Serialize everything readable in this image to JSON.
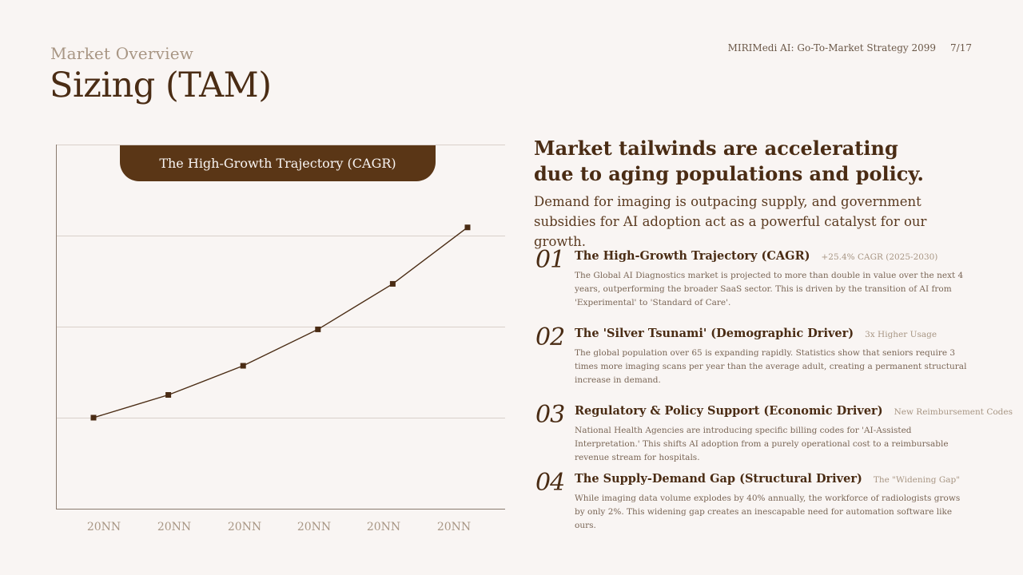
{
  "header": {
    "eyebrow": "Market Overview",
    "title": "Sizing (TAM)",
    "deck_title": "MIRIMedi AI: Go-To-Market Strategy 2099",
    "page_number": "7/17"
  },
  "chart_data": {
    "type": "line",
    "title": "The High-Growth Trajectory (CAGR)",
    "categories": [
      "20NN",
      "20NN",
      "20NN",
      "20NN",
      "20NN",
      "20NN"
    ],
    "values": [
      1.0,
      1.25,
      1.57,
      1.97,
      2.47,
      3.09
    ],
    "ylim": [
      0,
      4
    ],
    "xlabel": "",
    "ylabel": "",
    "grid": true,
    "colors": {
      "line": "#4a2c14",
      "grid": "#d9d0ca",
      "axis": "#8a7a6e",
      "tick_label": "#a89684",
      "banner": "#5a3616"
    }
  },
  "summary": {
    "headline_line1": "Market tailwinds are accelerating",
    "headline_line2": "due to aging populations and policy.",
    "subhead": "Demand for imaging is outpacing supply, and government subsidies for AI adoption act as a powerful catalyst for our growth."
  },
  "drivers": [
    {
      "number": "01",
      "title": "The High-Growth Trajectory (CAGR)",
      "tag": "+25.4% CAGR (2025-2030)",
      "description": "The Global AI Diagnostics market is projected to more than double in value over the next 4 years, outperforming the broader SaaS sector. This is driven by the transition of AI from 'Experimental' to 'Standard of Care'."
    },
    {
      "number": "02",
      "title": "The 'Silver Tsunami' (Demographic Driver)",
      "tag": "3x Higher Usage",
      "description": "The global population over 65 is expanding rapidly. Statistics show that seniors require 3 times more imaging scans per year than the average adult, creating a permanent structural increase in demand."
    },
    {
      "number": "03",
      "title": "Regulatory & Policy Support (Economic Driver)",
      "tag": "New Reimbursement Codes",
      "description": "National Health Agencies are introducing specific billing codes for 'AI-Assisted Interpretation.' This shifts AI adoption from a purely operational cost to a reimbursable revenue stream for hospitals."
    },
    {
      "number": "04",
      "title": "The Supply-Demand Gap (Structural Driver)",
      "tag": "The \"Widening Gap\"",
      "description": "While imaging data volume explodes by 40% annually, the workforce of radiologists grows by only 2%. This widening gap creates an inescapable need for automation software like ours."
    }
  ]
}
